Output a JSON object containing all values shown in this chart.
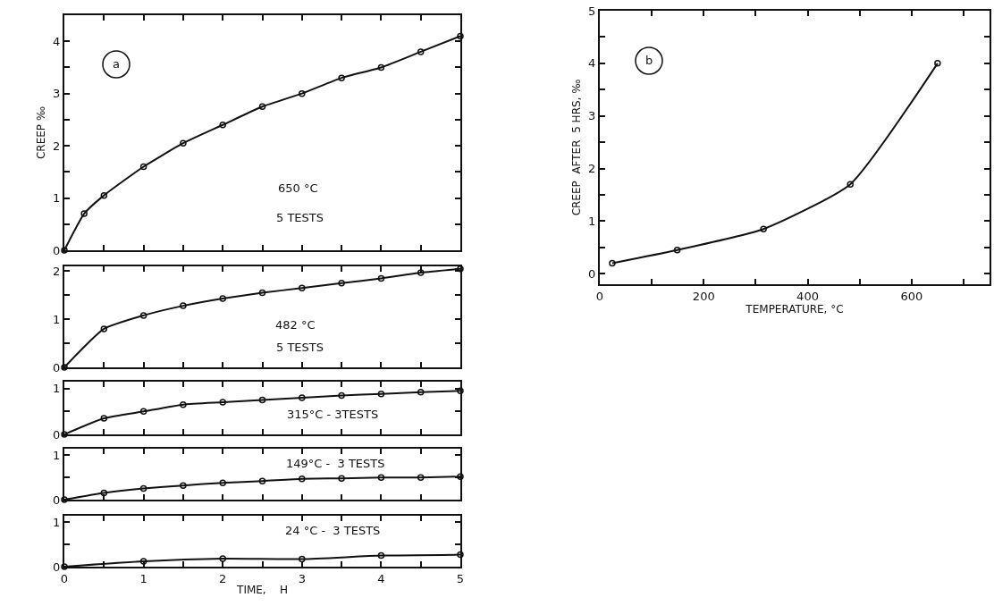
{
  "chart_data": [
    {
      "type": "line",
      "ylabel": "CREEP ‰",
      "x": [
        0,
        0.25,
        0.5,
        1,
        1.5,
        2,
        2.5,
        3,
        3.5,
        4,
        4.5,
        5
      ],
      "series": [
        {
          "color": "#111111",
          "values": [
            0,
            0.7,
            1.05,
            1.6,
            2.05,
            2.4,
            2.75,
            3.0,
            3.3,
            3.5,
            3.8,
            4.1
          ]
        }
      ],
      "xlim": [
        0,
        5
      ],
      "ylim": [
        0,
        4.5
      ],
      "xticks": [
        {
          "value": 0,
          "label": null
        },
        {
          "value": 0.5,
          "label": null
        },
        {
          "value": 1,
          "label": null
        },
        {
          "value": 1.5,
          "label": null
        },
        {
          "value": 2,
          "label": null
        },
        {
          "value": 2.5,
          "label": null
        },
        {
          "value": 3,
          "label": null
        },
        {
          "value": 3.5,
          "label": null
        },
        {
          "value": 4,
          "label": null
        },
        {
          "value": 4.5,
          "label": null
        },
        {
          "value": 5,
          "label": null
        }
      ],
      "yticks": [
        0,
        {
          "value": 0.5,
          "label": null
        },
        1,
        {
          "value": 1.5,
          "label": null
        },
        2,
        {
          "value": 2.5,
          "label": null
        },
        3,
        {
          "value": 3.5,
          "label": null
        },
        4
      ],
      "tick_labels": "y",
      "marker": "circle",
      "grid": false,
      "annotations": [
        "a",
        "650 °C",
        "5 TESTS"
      ]
    },
    {
      "type": "line",
      "x": [
        0,
        0.5,
        1,
        1.5,
        2,
        2.5,
        3,
        3.5,
        4,
        4.5,
        5
      ],
      "series": [
        {
          "color": "#111111",
          "values": [
            0,
            0.8,
            1.08,
            1.28,
            1.43,
            1.55,
            1.65,
            1.75,
            1.85,
            1.97,
            2.05
          ]
        }
      ],
      "xlim": [
        0,
        5
      ],
      "ylim": [
        0,
        2.1
      ],
      "xticks": [
        {
          "value": 0,
          "label": null
        },
        {
          "value": 0.5,
          "label": null
        },
        {
          "value": 1,
          "label": null
        },
        {
          "value": 1.5,
          "label": null
        },
        {
          "value": 2,
          "label": null
        },
        {
          "value": 2.5,
          "label": null
        },
        {
          "value": 3,
          "label": null
        },
        {
          "value": 3.5,
          "label": null
        },
        {
          "value": 4,
          "label": null
        },
        {
          "value": 4.5,
          "label": null
        },
        {
          "value": 5,
          "label": null
        }
      ],
      "yticks": [
        0,
        {
          "value": 0.5,
          "label": null
        },
        1,
        {
          "value": 1.5,
          "label": null
        },
        2
      ],
      "tick_labels": "y",
      "marker": "circle",
      "grid": false,
      "annotations": [
        "482 °C",
        "5 TESTS"
      ]
    },
    {
      "type": "line",
      "x": [
        0,
        0.5,
        1,
        1.5,
        2,
        2.5,
        3,
        3.5,
        4,
        4.5,
        5
      ],
      "series": [
        {
          "color": "#111111",
          "values": [
            0,
            0.35,
            0.5,
            0.65,
            0.7,
            0.75,
            0.8,
            0.85,
            0.88,
            0.92,
            0.95
          ]
        }
      ],
      "xlim": [
        0,
        5
      ],
      "ylim": [
        0,
        1.15
      ],
      "xticks": [
        {
          "value": 0,
          "label": null
        },
        {
          "value": 0.5,
          "label": null
        },
        {
          "value": 1,
          "label": null
        },
        {
          "value": 1.5,
          "label": null
        },
        {
          "value": 2,
          "label": null
        },
        {
          "value": 2.5,
          "label": null
        },
        {
          "value": 3,
          "label": null
        },
        {
          "value": 3.5,
          "label": null
        },
        {
          "value": 4,
          "label": null
        },
        {
          "value": 4.5,
          "label": null
        },
        {
          "value": 5,
          "label": null
        }
      ],
      "yticks": [
        0,
        {
          "value": 0.5,
          "label": null
        },
        1
      ],
      "tick_labels": "y",
      "marker": "circle",
      "grid": false,
      "annotations": [
        "315°C - 3TESTS"
      ]
    },
    {
      "type": "line",
      "x": [
        0,
        0.5,
        1,
        1.5,
        2,
        2.5,
        3,
        3.5,
        4,
        4.5,
        5
      ],
      "series": [
        {
          "color": "#111111",
          "values": [
            0,
            0.15,
            0.25,
            0.32,
            0.38,
            0.42,
            0.47,
            0.48,
            0.5,
            0.5,
            0.52
          ]
        }
      ],
      "xlim": [
        0,
        5
      ],
      "ylim": [
        0,
        1.15
      ],
      "xticks": [
        {
          "value": 0,
          "label": null
        },
        {
          "value": 0.5,
          "label": null
        },
        {
          "value": 1,
          "label": null
        },
        {
          "value": 1.5,
          "label": null
        },
        {
          "value": 2,
          "label": null
        },
        {
          "value": 2.5,
          "label": null
        },
        {
          "value": 3,
          "label": null
        },
        {
          "value": 3.5,
          "label": null
        },
        {
          "value": 4,
          "label": null
        },
        {
          "value": 4.5,
          "label": null
        },
        {
          "value": 5,
          "label": null
        }
      ],
      "yticks": [
        0,
        {
          "value": 0.5,
          "label": null
        },
        1
      ],
      "tick_labels": "y",
      "marker": "circle",
      "grid": false,
      "annotations": [
        "149°C -  3 TESTS"
      ]
    },
    {
      "type": "line",
      "xlabel": "TIME,    H",
      "x": [
        0,
        1,
        2,
        3,
        4,
        5
      ],
      "series": [
        {
          "color": "#111111",
          "values": [
            0,
            0.12,
            0.18,
            0.17,
            0.25,
            0.27
          ]
        }
      ],
      "xlim": [
        0,
        5
      ],
      "ylim": [
        0,
        1.15
      ],
      "xticks": [
        0,
        {
          "value": 0.5,
          "label": null
        },
        1,
        {
          "value": 1.5,
          "label": null
        },
        2,
        {
          "value": 2.5,
          "label": null
        },
        3,
        {
          "value": 3.5,
          "label": null
        },
        4,
        {
          "value": 4.5,
          "label": null
        },
        5
      ],
      "yticks": [
        0,
        {
          "value": 0.5,
          "label": null
        },
        1
      ],
      "marker": "circle",
      "grid": false,
      "annotations": [
        "24 °C -  3 TESTS"
      ]
    },
    {
      "type": "line",
      "xlabel": "TEMPERATURE, °C",
      "ylabel": "CREEP  AFTER  5 HRS, ‰",
      "x": [
        24,
        149,
        315,
        482,
        650
      ],
      "series": [
        {
          "color": "#111111",
          "values": [
            0.2,
            0.45,
            0.85,
            1.7,
            4.0
          ]
        }
      ],
      "xlim": [
        0,
        750
      ],
      "ylim": [
        -0.2,
        5
      ],
      "xticks": [
        0,
        {
          "value": 100,
          "label": null
        },
        200,
        {
          "value": 300,
          "label": null
        },
        400,
        {
          "value": 500,
          "label": null
        },
        600,
        {
          "value": 700,
          "label": null
        }
      ],
      "yticks": [
        0,
        {
          "value": 0.5,
          "label": null
        },
        1,
        {
          "value": 1.5,
          "label": null
        },
        2,
        {
          "value": 2.5,
          "label": null
        },
        3,
        {
          "value": 3.5,
          "label": null
        },
        4,
        {
          "value": 4.5,
          "label": null
        },
        5
      ],
      "marker": "circle",
      "grid": false,
      "annotations": [
        "b"
      ]
    }
  ]
}
